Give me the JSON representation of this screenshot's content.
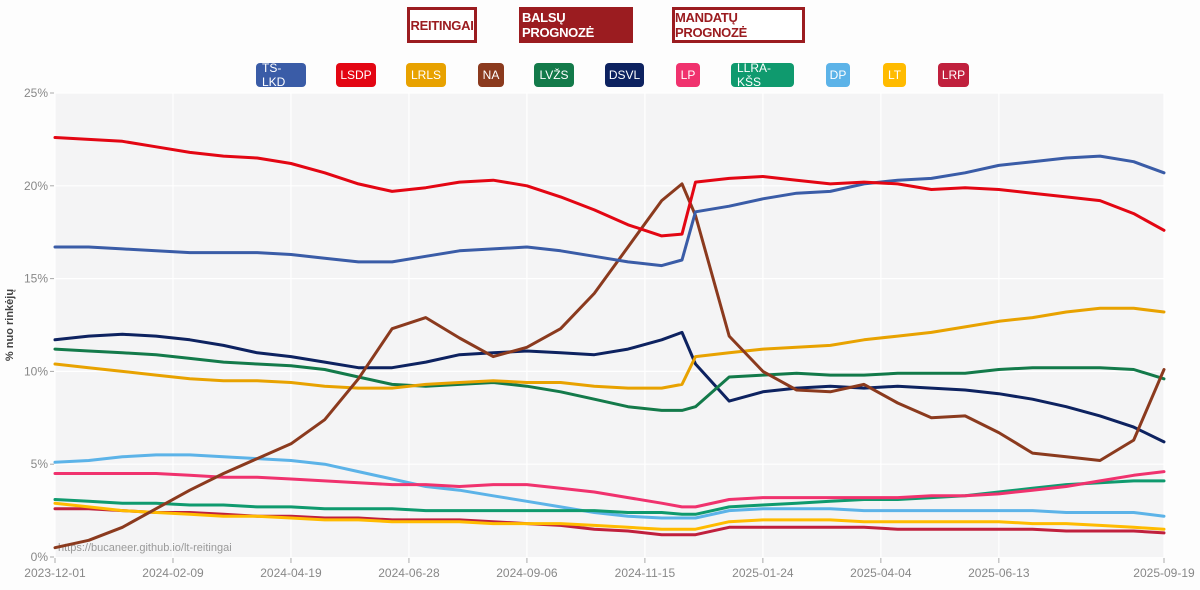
{
  "nav": {
    "buttons": [
      {
        "label": "REITINGAI",
        "active": false
      },
      {
        "label": "BALSŲ PROGNOZĖ",
        "active": true
      },
      {
        "label": "MANDATŲ PROGNOZĖ",
        "active": false
      }
    ]
  },
  "chart_data": {
    "type": "line",
    "title": "",
    "xlabel": "",
    "ylabel": "% nuo rinkėjų",
    "ylim": [
      0,
      25
    ],
    "yticks": [
      "0%",
      "5%",
      "10%",
      "15%",
      "20%",
      "25%"
    ],
    "x_start": "2023-12-01",
    "x_end": "2025-09-19",
    "xtick_labels": [
      "2023-12-01",
      "2024-02-09",
      "2024-04-19",
      "2024-06-28",
      "2024-09-06",
      "2024-11-15",
      "2025-01-24",
      "2025-04-04",
      "2025-06-13",
      "2025-09-19"
    ],
    "xtick_days": [
      0,
      70,
      140,
      210,
      280,
      350,
      420,
      490,
      560,
      658
    ],
    "grid": true,
    "legend_position": "top-center",
    "credit": "https://bucaneer.github.io/lt-reitingai",
    "x_days": [
      0,
      20,
      40,
      60,
      80,
      100,
      120,
      140,
      160,
      180,
      200,
      220,
      240,
      260,
      280,
      300,
      320,
      340,
      360,
      372,
      380,
      400,
      420,
      440,
      460,
      480,
      500,
      520,
      540,
      560,
      580,
      600,
      620,
      640,
      658
    ],
    "series": [
      {
        "name": "TS-LKD",
        "color": "#3a5ca7",
        "values": [
          16.7,
          16.7,
          16.6,
          16.5,
          16.4,
          16.4,
          16.4,
          16.3,
          16.1,
          15.9,
          15.9,
          16.2,
          16.5,
          16.6,
          16.7,
          16.5,
          16.2,
          15.9,
          15.7,
          16.0,
          18.6,
          18.9,
          19.3,
          19.6,
          19.7,
          20.1,
          20.3,
          20.4,
          20.7,
          21.1,
          21.3,
          21.5,
          21.6,
          21.3,
          20.7
        ]
      },
      {
        "name": "LSDP",
        "color": "#e30613",
        "values": [
          22.6,
          22.5,
          22.4,
          22.1,
          21.8,
          21.6,
          21.5,
          21.2,
          20.7,
          20.1,
          19.7,
          19.9,
          20.2,
          20.3,
          20.0,
          19.4,
          18.7,
          17.9,
          17.3,
          17.4,
          20.2,
          20.4,
          20.5,
          20.3,
          20.1,
          20.2,
          20.1,
          19.8,
          19.9,
          19.8,
          19.6,
          19.4,
          19.2,
          18.5,
          17.6
        ]
      },
      {
        "name": "LRLS",
        "color": "#e8a200",
        "values": [
          10.4,
          10.2,
          10.0,
          9.8,
          9.6,
          9.5,
          9.5,
          9.4,
          9.2,
          9.1,
          9.1,
          9.3,
          9.4,
          9.5,
          9.4,
          9.4,
          9.2,
          9.1,
          9.1,
          9.3,
          10.8,
          11.0,
          11.2,
          11.3,
          11.4,
          11.7,
          11.9,
          12.1,
          12.4,
          12.7,
          12.9,
          13.2,
          13.4,
          13.4,
          13.2
        ]
      },
      {
        "name": "NA",
        "color": "#8b3a1e",
        "values": [
          0.5,
          0.9,
          1.6,
          2.6,
          3.6,
          4.5,
          5.3,
          6.1,
          7.4,
          9.6,
          12.3,
          12.9,
          11.8,
          10.8,
          11.3,
          12.3,
          14.2,
          16.7,
          19.2,
          20.1,
          18.4,
          11.9,
          10.0,
          9.0,
          8.9,
          9.3,
          8.3,
          7.5,
          7.6,
          6.7,
          5.6,
          5.4,
          5.2,
          6.3,
          10.1
        ]
      },
      {
        "name": "LVŽS",
        "color": "#137a4a",
        "values": [
          11.2,
          11.1,
          11.0,
          10.9,
          10.7,
          10.5,
          10.4,
          10.3,
          10.1,
          9.7,
          9.3,
          9.2,
          9.3,
          9.4,
          9.2,
          8.9,
          8.5,
          8.1,
          7.9,
          7.9,
          8.1,
          9.7,
          9.8,
          9.9,
          9.8,
          9.8,
          9.9,
          9.9,
          9.9,
          10.1,
          10.2,
          10.2,
          10.2,
          10.1,
          9.6
        ]
      },
      {
        "name": "DSVL",
        "color": "#0d2260",
        "values": [
          11.7,
          11.9,
          12.0,
          11.9,
          11.7,
          11.4,
          11.0,
          10.8,
          10.5,
          10.2,
          10.2,
          10.5,
          10.9,
          11.0,
          11.1,
          11.0,
          10.9,
          11.2,
          11.7,
          12.1,
          10.4,
          8.4,
          8.9,
          9.1,
          9.2,
          9.1,
          9.2,
          9.1,
          9.0,
          8.8,
          8.5,
          8.1,
          7.6,
          7.0,
          6.2
        ]
      },
      {
        "name": "LP",
        "color": "#f0326e",
        "values": [
          4.5,
          4.5,
          4.5,
          4.5,
          4.4,
          4.3,
          4.3,
          4.2,
          4.1,
          4.0,
          3.9,
          3.9,
          3.8,
          3.9,
          3.9,
          3.7,
          3.5,
          3.2,
          2.9,
          2.7,
          2.7,
          3.1,
          3.2,
          3.2,
          3.2,
          3.2,
          3.2,
          3.3,
          3.3,
          3.4,
          3.6,
          3.8,
          4.1,
          4.4,
          4.6
        ]
      },
      {
        "name": "LLRA-KŠS",
        "color": "#0f9a6e",
        "values": [
          3.1,
          3.0,
          2.9,
          2.9,
          2.8,
          2.8,
          2.7,
          2.7,
          2.6,
          2.6,
          2.6,
          2.5,
          2.5,
          2.5,
          2.5,
          2.5,
          2.5,
          2.4,
          2.4,
          2.3,
          2.3,
          2.7,
          2.8,
          2.9,
          3.0,
          3.1,
          3.1,
          3.2,
          3.3,
          3.5,
          3.7,
          3.9,
          4.0,
          4.1,
          4.1
        ]
      },
      {
        "name": "DP",
        "color": "#5cb3e8",
        "values": [
          5.1,
          5.2,
          5.4,
          5.5,
          5.5,
          5.4,
          5.3,
          5.2,
          5.0,
          4.6,
          4.2,
          3.8,
          3.6,
          3.3,
          3.0,
          2.7,
          2.4,
          2.2,
          2.1,
          2.1,
          2.1,
          2.5,
          2.6,
          2.6,
          2.6,
          2.5,
          2.5,
          2.5,
          2.5,
          2.5,
          2.5,
          2.4,
          2.4,
          2.4,
          2.2
        ]
      },
      {
        "name": "LT",
        "color": "#ffbb00",
        "values": [
          2.9,
          2.7,
          2.5,
          2.4,
          2.3,
          2.2,
          2.2,
          2.1,
          2.0,
          2.0,
          1.9,
          1.9,
          1.9,
          1.8,
          1.8,
          1.8,
          1.7,
          1.6,
          1.5,
          1.5,
          1.5,
          1.9,
          2.0,
          2.0,
          2.0,
          1.9,
          1.9,
          1.9,
          1.9,
          1.9,
          1.8,
          1.8,
          1.7,
          1.6,
          1.5
        ]
      },
      {
        "name": "LRP",
        "color": "#c0203d",
        "values": [
          2.6,
          2.6,
          2.5,
          2.4,
          2.4,
          2.3,
          2.2,
          2.2,
          2.1,
          2.1,
          2.0,
          2.0,
          2.0,
          1.9,
          1.8,
          1.7,
          1.5,
          1.4,
          1.2,
          1.2,
          1.2,
          1.6,
          1.6,
          1.6,
          1.6,
          1.6,
          1.5,
          1.5,
          1.5,
          1.5,
          1.5,
          1.4,
          1.4,
          1.4,
          1.3
        ]
      }
    ]
  }
}
